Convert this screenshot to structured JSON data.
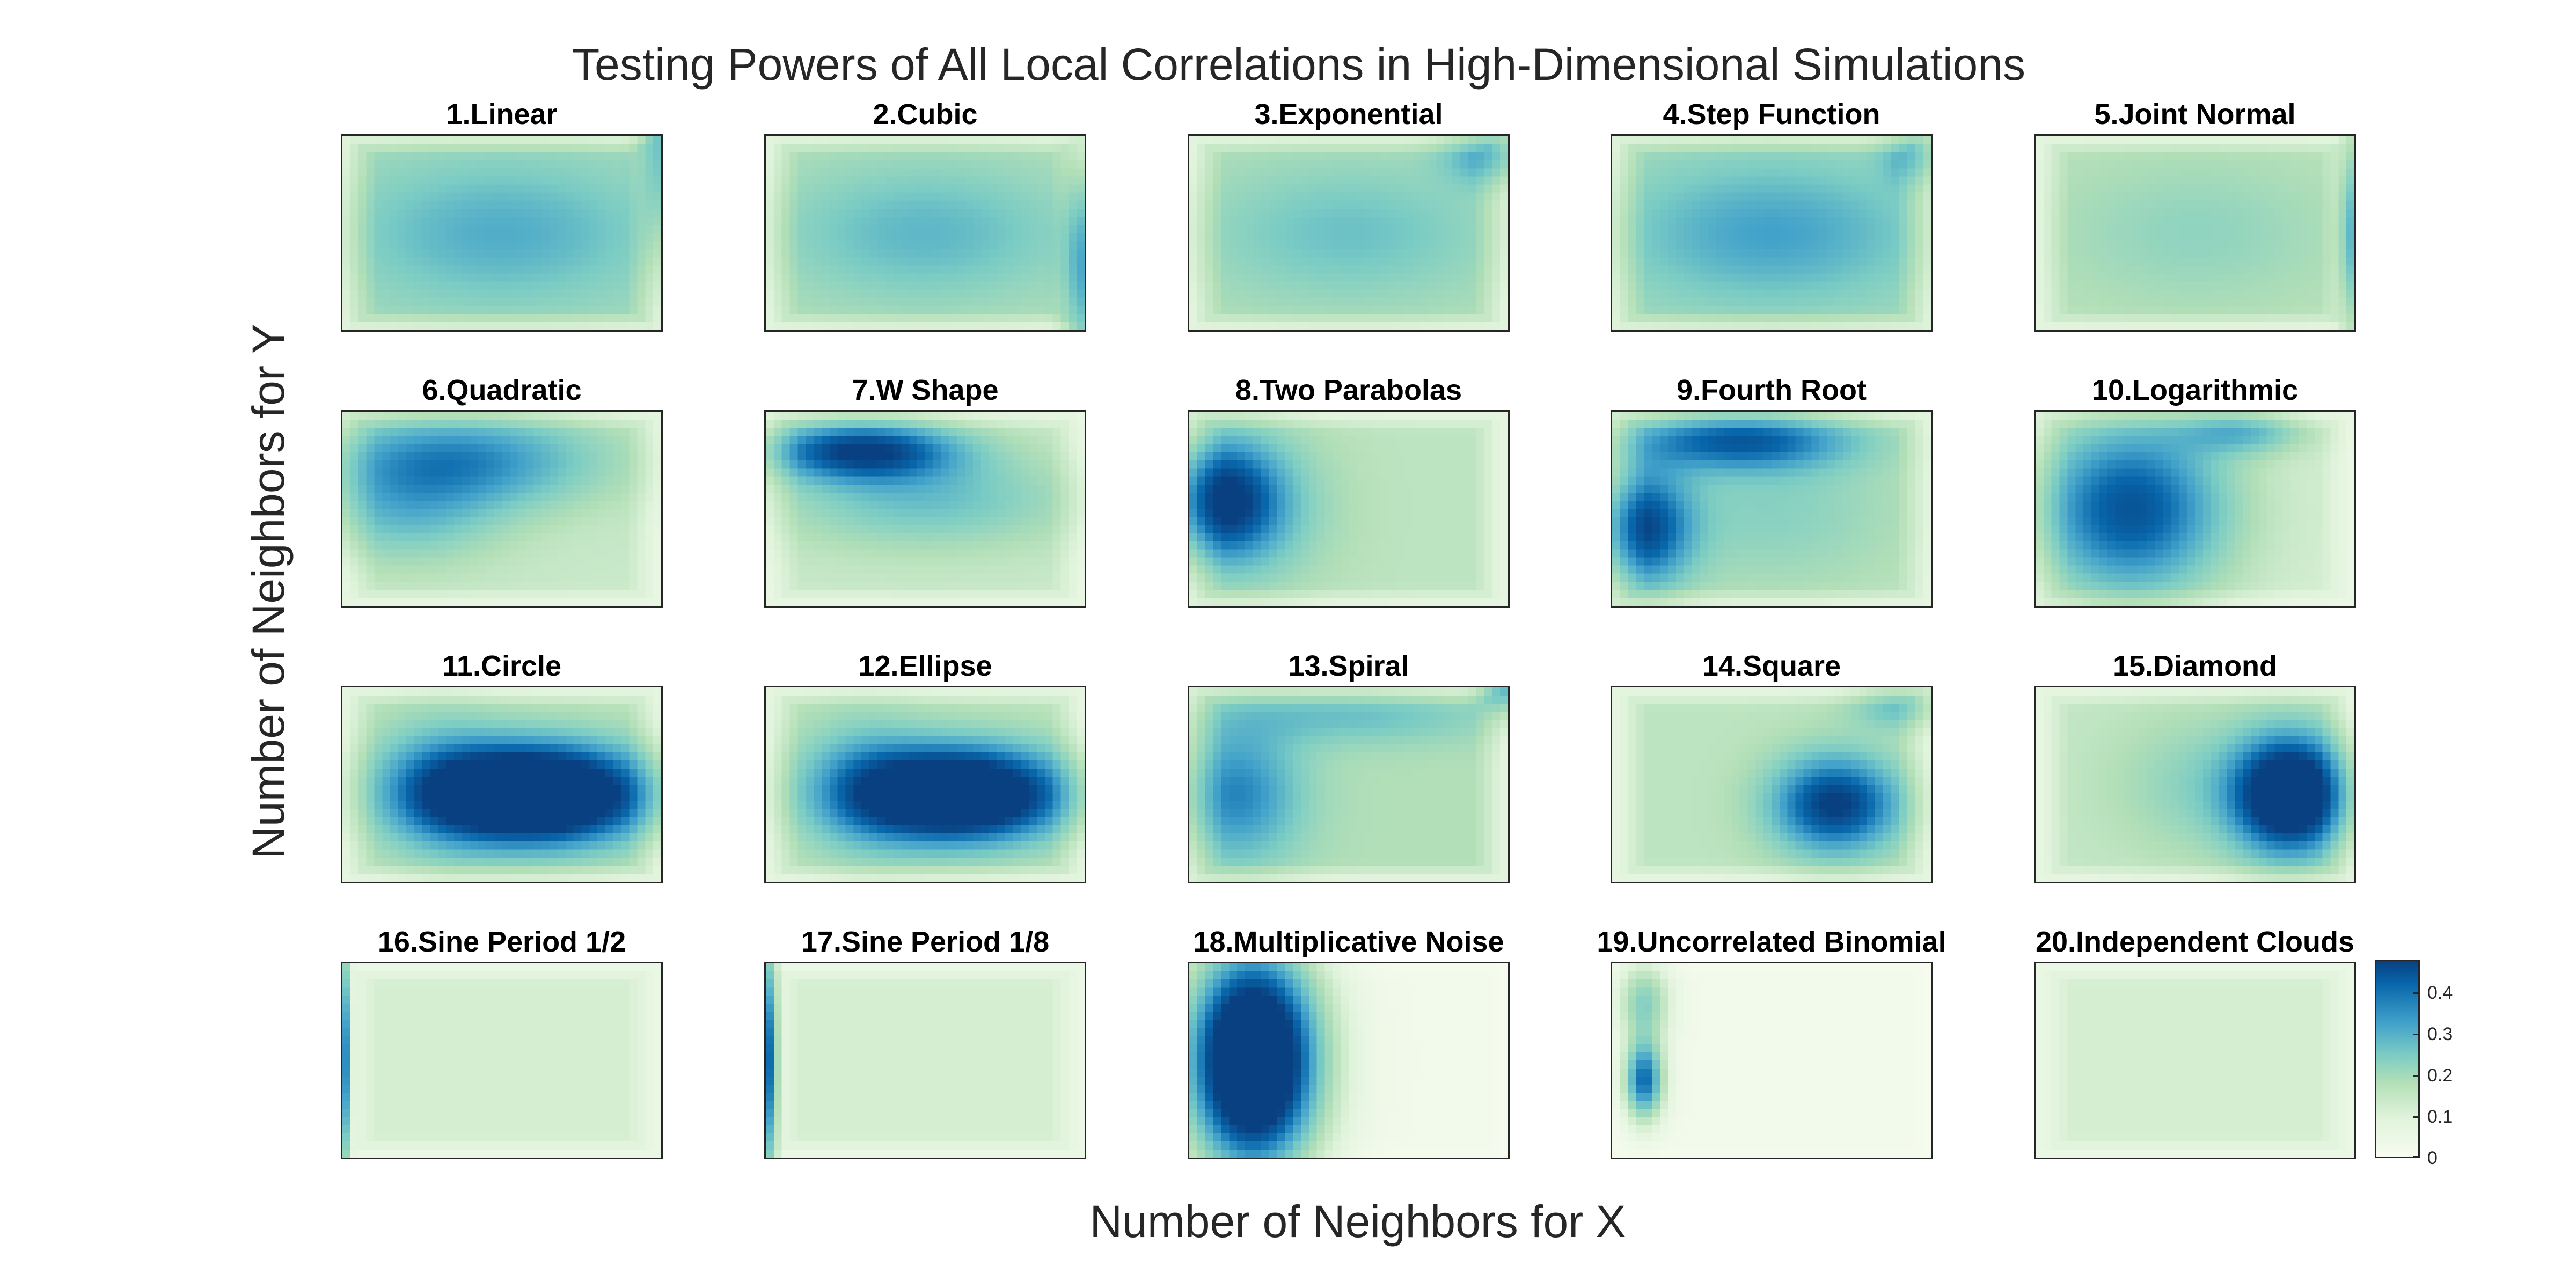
{
  "chart_data": {
    "type": "heatmap",
    "title": "Testing Powers of All Local Correlations in High-Dimensional Simulations",
    "xlabel": "Number of Neighbors for X",
    "ylabel": "Number of Neighbors for Y",
    "grid": false,
    "colorbar": {
      "ticks": [
        "0",
        "0.1",
        "0.2",
        "0.3",
        "0.4"
      ],
      "tick_values": [
        0,
        0.1,
        0.2,
        0.3,
        0.4
      ],
      "range": [
        0,
        0.48
      ],
      "colors": [
        "#f7fcf0",
        "#e0f3db",
        "#b2dfb7",
        "#7bccc4",
        "#43a2ca",
        "#0868ac",
        "#084081"
      ]
    },
    "panels": [
      {
        "title": "1.Linear",
        "base": 0.18,
        "blobs": [
          [
            0.5,
            0.5,
            0.45,
            0.35,
            0.12
          ],
          [
            1.0,
            1.0,
            0.06,
            0.5,
            0.18
          ]
        ]
      },
      {
        "title": "2.Cubic",
        "base": 0.16,
        "blobs": [
          [
            0.5,
            0.5,
            0.45,
            0.35,
            0.12
          ],
          [
            1.0,
            0.3,
            0.06,
            0.5,
            0.22
          ]
        ]
      },
      {
        "title": "3.Exponential",
        "base": 0.16,
        "blobs": [
          [
            0.5,
            0.5,
            0.45,
            0.35,
            0.1
          ],
          [
            0.95,
            0.9,
            0.15,
            0.15,
            0.15
          ]
        ]
      },
      {
        "title": "4.Step Function",
        "base": 0.18,
        "blobs": [
          [
            0.5,
            0.5,
            0.45,
            0.35,
            0.14
          ],
          [
            0.95,
            0.9,
            0.1,
            0.15,
            0.12
          ]
        ]
      },
      {
        "title": "5.Joint Normal",
        "base": 0.15,
        "blobs": [
          [
            0.5,
            0.5,
            0.4,
            0.35,
            0.06
          ],
          [
            1.0,
            0.5,
            0.04,
            0.5,
            0.22
          ]
        ]
      },
      {
        "title": "6.Quadratic",
        "base": 0.12,
        "blobs": [
          [
            0.35,
            0.75,
            0.45,
            0.25,
            0.24
          ],
          [
            0.2,
            0.45,
            0.3,
            0.25,
            0.12
          ]
        ]
      },
      {
        "title": "7.W Shape",
        "base": 0.12,
        "blobs": [
          [
            0.3,
            0.8,
            0.3,
            0.15,
            0.34
          ],
          [
            0.5,
            0.55,
            0.45,
            0.25,
            0.14
          ]
        ]
      },
      {
        "title": "8.Two Parabolas",
        "base": 0.14,
        "blobs": [
          [
            0.1,
            0.55,
            0.18,
            0.3,
            0.3
          ],
          [
            0.2,
            0.5,
            0.25,
            0.4,
            0.1
          ]
        ]
      },
      {
        "title": "9.Fourth Root",
        "base": 0.14,
        "blobs": [
          [
            0.1,
            0.4,
            0.15,
            0.3,
            0.3
          ],
          [
            0.4,
            0.85,
            0.35,
            0.15,
            0.26
          ],
          [
            0.5,
            0.5,
            0.4,
            0.4,
            0.08
          ]
        ]
      },
      {
        "title": "10.Logarithmic",
        "base": 0.1,
        "blobs": [
          [
            0.3,
            0.5,
            0.3,
            0.45,
            0.34
          ],
          [
            0.65,
            0.9,
            0.2,
            0.12,
            0.16
          ]
        ]
      },
      {
        "title": "11.Circle",
        "base": 0.14,
        "blobs": [
          [
            0.6,
            0.45,
            0.35,
            0.25,
            0.6
          ],
          [
            0.3,
            0.5,
            0.2,
            0.35,
            0.12
          ]
        ]
      },
      {
        "title": "12.Ellipse",
        "base": 0.14,
        "blobs": [
          [
            0.6,
            0.45,
            0.33,
            0.24,
            0.55
          ],
          [
            0.3,
            0.5,
            0.2,
            0.35,
            0.12
          ]
        ]
      },
      {
        "title": "13.Spiral",
        "base": 0.16,
        "blobs": [
          [
            0.15,
            0.45,
            0.2,
            0.35,
            0.2
          ],
          [
            0.5,
            0.85,
            0.45,
            0.15,
            0.1
          ],
          [
            1.0,
            1.0,
            0.08,
            0.12,
            0.2
          ]
        ]
      },
      {
        "title": "14.Square",
        "base": 0.14,
        "blobs": [
          [
            0.7,
            0.4,
            0.2,
            0.25,
            0.35
          ],
          [
            0.9,
            0.9,
            0.15,
            0.12,
            0.12
          ]
        ]
      },
      {
        "title": "15.Diamond",
        "base": 0.13,
        "blobs": [
          [
            0.8,
            0.45,
            0.18,
            0.3,
            0.5
          ],
          [
            0.5,
            0.5,
            0.25,
            0.35,
            0.08
          ]
        ]
      },
      {
        "title": "16.Sine Period 1/2",
        "base": 0.1,
        "blobs": [
          [
            0.0,
            0.5,
            0.02,
            0.6,
            0.45
          ]
        ]
      },
      {
        "title": "17.Sine Period 1/8",
        "base": 0.1,
        "blobs": [
          [
            0.02,
            0.5,
            0.015,
            0.6,
            0.45
          ]
        ]
      },
      {
        "title": "18.Multiplicative Noise",
        "base": 0.02,
        "blobs": [
          [
            0.2,
            0.5,
            0.2,
            0.55,
            0.7
          ]
        ]
      },
      {
        "title": "19.Uncorrelated Binomial",
        "base": 0.02,
        "blobs": [
          [
            0.1,
            0.4,
            0.06,
            0.2,
            0.38
          ],
          [
            0.1,
            0.8,
            0.08,
            0.2,
            0.2
          ]
        ]
      },
      {
        "title": "20.Independent Clouds",
        "base": 0.1,
        "blobs": []
      }
    ]
  }
}
